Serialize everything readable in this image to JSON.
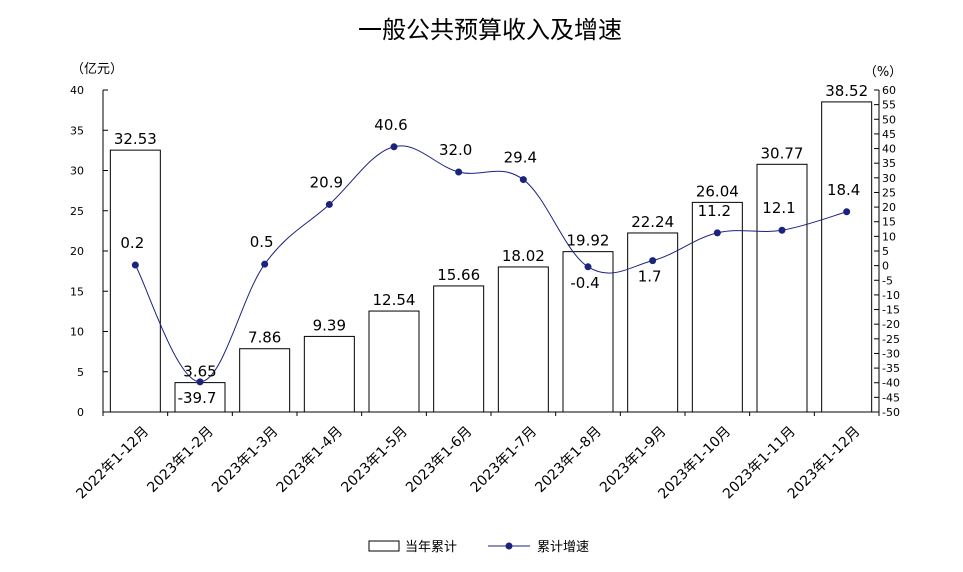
{
  "chart_data": {
    "type": "bar+line",
    "title": "一般公共预算收入及增速",
    "left_unit": "（亿元）",
    "right_unit": "（%）",
    "categories": [
      "2022年1-12月",
      "2023年1-2月",
      "2023年1-3月",
      "2023年1-4月",
      "2023年1-5月",
      "2023年1-6月",
      "2023年1-7月",
      "2023年1-8月",
      "2023年1-9月",
      "2023年1-10月",
      "2023年1-11月",
      "2023年1-12月"
    ],
    "series": [
      {
        "name": "当年累计",
        "type": "bar",
        "axis": "left",
        "values": [
          32.53,
          3.65,
          7.86,
          9.39,
          12.54,
          15.66,
          18.02,
          19.92,
          22.24,
          26.04,
          30.77,
          38.52
        ],
        "labels": [
          "32.53",
          "3.65",
          "7.86",
          "9.39",
          "12.54",
          "15.66",
          "18.02",
          "19.92",
          "22.24",
          "26.04",
          "30.77",
          "38.52"
        ]
      },
      {
        "name": "累计增速",
        "type": "line",
        "axis": "right",
        "values": [
          0.2,
          -39.7,
          0.5,
          20.9,
          40.6,
          32.0,
          29.4,
          -0.4,
          1.7,
          11.2,
          12.1,
          18.4
        ],
        "labels": [
          "0.2",
          "-39.7",
          "0.5",
          "20.9",
          "40.6",
          "32.0",
          "29.4",
          "-0.4",
          "1.7",
          "11.2",
          "12.1",
          "18.4"
        ]
      }
    ],
    "left_axis": {
      "ylim": [
        0,
        40
      ],
      "ticks": [
        "0",
        "5",
        "10",
        "15",
        "20",
        "25",
        "30",
        "35",
        "40"
      ]
    },
    "right_axis": {
      "ylim": [
        -50,
        60
      ],
      "ticks": [
        "-50",
        "-45",
        "-40",
        "-35",
        "-30",
        "-25",
        "-20",
        "-15",
        "-10",
        "-5",
        "0",
        "5",
        "10",
        "15",
        "20",
        "25",
        "30",
        "35",
        "40",
        "45",
        "50",
        "55",
        "60"
      ]
    },
    "colors": {
      "bar_fill": "#ffffff",
      "bar_stroke": "#000000",
      "line": "#1a237e",
      "marker": "#1a237e"
    },
    "legend_position": "bottom",
    "grid": false
  }
}
